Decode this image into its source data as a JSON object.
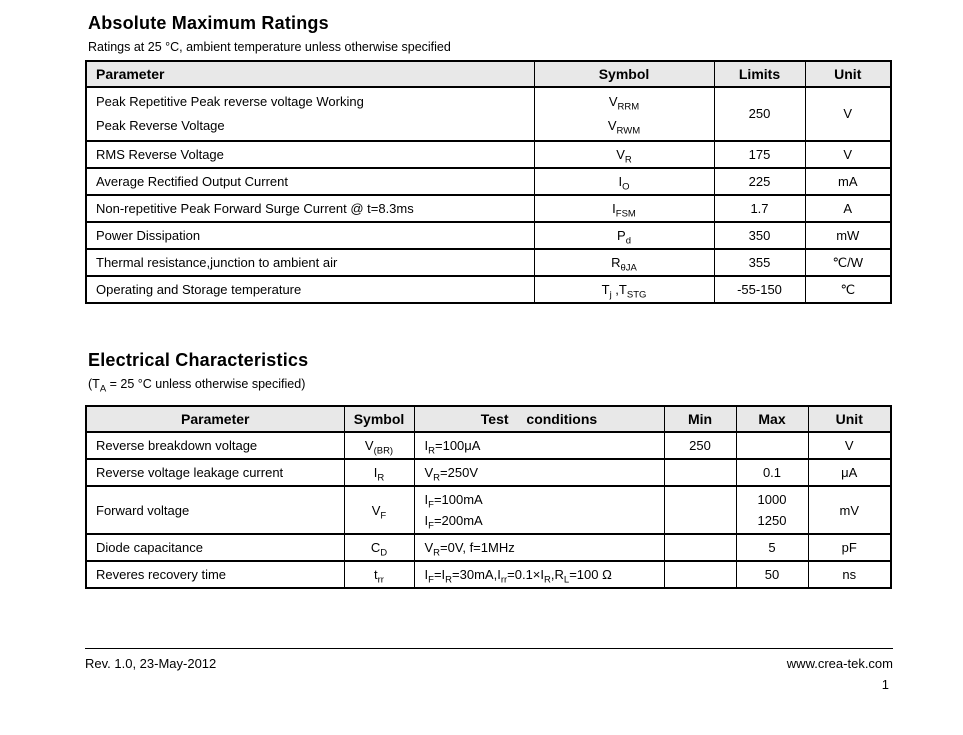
{
  "abs_max": {
    "title": "Absolute Maximum Ratings",
    "subtitle": "Ratings at 25 °C, ambient temperature unless otherwise specified",
    "headers": [
      "Parameter",
      "Symbol",
      "Limits",
      "Unit"
    ],
    "rows": [
      {
        "parameter": "Peak Repetitive Peak reverse voltage Working<br>Peak Reverse Voltage",
        "symbol": "V<sub>RRM</sub><br>V<sub>RWM</sub>",
        "limits": "250",
        "unit": "V"
      },
      {
        "parameter": "RMS Reverse Voltage",
        "symbol": "V<sub>R</sub>",
        "limits": "175",
        "unit": "V"
      },
      {
        "parameter": "Average Rectified Output Current",
        "symbol": "I<sub>O</sub>",
        "limits": "225",
        "unit": "mA"
      },
      {
        "parameter": "Non-repetitive Peak Forward Surge Current @ t=8.3ms",
        "symbol": "I<sub>FSM</sub>",
        "limits": "1.7",
        "unit": "A"
      },
      {
        "parameter": "Power Dissipation",
        "symbol": "P<sub>d</sub>",
        "limits": "350",
        "unit": "mW"
      },
      {
        "parameter": "Thermal resistance,junction to ambient air",
        "symbol": "R<sub>θJA</sub>",
        "limits": "355",
        "unit": "℃/W"
      },
      {
        "parameter": "Operating and Storage temperature",
        "symbol": "T<sub>j</sub> ,T<sub>STG</sub>",
        "limits": "-55-150",
        "unit": "℃"
      }
    ]
  },
  "elec": {
    "title": "Electrical Characteristics",
    "subtitle": "(T<sub>A</sub> = 25 °C unless otherwise specified)",
    "headers": [
      "Parameter",
      "Symbol",
      "Test conditions",
      "Min",
      "Max",
      "Unit"
    ],
    "rows": [
      {
        "parameter": "Reverse breakdown voltage",
        "symbol": "V<sub>(BR)</sub>",
        "conditions": "I<sub>R</sub>=100μA",
        "min": "250",
        "max": "",
        "unit": "V"
      },
      {
        "parameter": "Reverse voltage leakage current",
        "symbol": "I<sub>R</sub>",
        "conditions": "V<sub>R</sub>=250V",
        "min": "",
        "max": "0.1",
        "unit": "μA"
      },
      {
        "parameter": "Forward voltage",
        "symbol": "V<sub>F</sub>",
        "conditions": "I<sub>F</sub>=100mA<br>I<sub>F</sub>=200mA",
        "min": "",
        "max": "1000<br>1250",
        "unit": "mV"
      },
      {
        "parameter": "Diode capacitance",
        "symbol": "C<sub>D</sub>",
        "conditions": "V<sub>R</sub>=0V, f=1MHz",
        "min": "",
        "max": "5",
        "unit": "pF"
      },
      {
        "parameter": "Reveres recovery time",
        "symbol": "t<sub>rr</sub>",
        "conditions": "I<sub>F</sub>=I<sub>R</sub>=30mA,I<sub>rr</sub>=0.1×I<sub>R</sub>,R<sub>L</sub>=100 Ω",
        "min": "",
        "max": "50",
        "unit": "ns"
      }
    ]
  },
  "footer": {
    "revision": "Rev. 1.0, 23-May-2012",
    "website": "www.crea-tek.com",
    "page_number": "1"
  }
}
